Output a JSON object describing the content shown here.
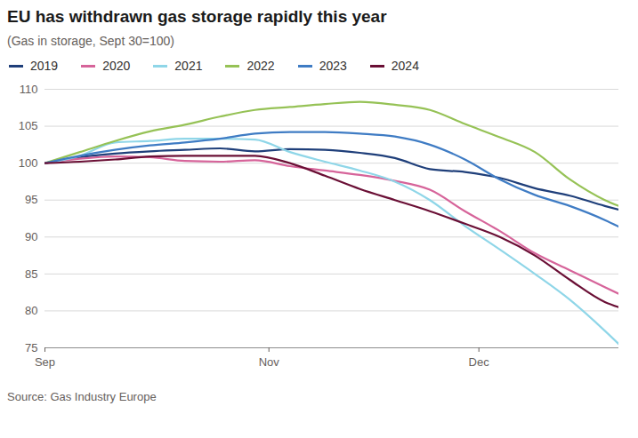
{
  "chart_data": {
    "type": "line",
    "title": "EU has withdrawn gas storage rapidly this year",
    "subtitle": "(Gas in storage, Sept 30=100)",
    "source": "Source: Gas Industry Europe",
    "x": [
      0,
      5,
      10,
      15,
      20,
      25,
      30,
      35,
      40,
      45,
      50,
      55,
      60,
      65,
      70,
      75,
      80,
      82
    ],
    "xlim": [
      0,
      82
    ],
    "xticks": [
      {
        "value": 0,
        "label": "Sep"
      },
      {
        "value": 32,
        "label": "Nov"
      },
      {
        "value": 62,
        "label": "Dec"
      }
    ],
    "ylim": [
      75,
      110
    ],
    "yticks": [
      75,
      80,
      85,
      90,
      95,
      100,
      105,
      110
    ],
    "grid": true,
    "legend": "top",
    "series": [
      {
        "name": "2019",
        "color": "#1f3f7a",
        "values": [
          100,
          100.8,
          101.3,
          101.6,
          101.8,
          102,
          101.6,
          101.9,
          101.8,
          101.4,
          100.7,
          99.2,
          98.8,
          98,
          96.6,
          95.6,
          94.2,
          93.7
        ]
      },
      {
        "name": "2020",
        "color": "#d6649a",
        "values": [
          100,
          100.6,
          100.9,
          100.8,
          100.3,
          100.2,
          100.4,
          99.6,
          99,
          98.4,
          97.6,
          96.4,
          93.5,
          90.8,
          87.8,
          85.5,
          83.2,
          82.3
        ]
      },
      {
        "name": "2021",
        "color": "#8fd6e8",
        "values": [
          100,
          101,
          102.8,
          103,
          103.3,
          103.3,
          103.2,
          101.5,
          100.2,
          99,
          97.5,
          95,
          91.5,
          88.3,
          85,
          81.5,
          77.3,
          75.5
        ]
      },
      {
        "name": "2022",
        "color": "#96c256",
        "values": [
          100,
          101.5,
          103,
          104.3,
          105.2,
          106.3,
          107.2,
          107.6,
          108,
          108.3,
          107.9,
          107.2,
          105.3,
          103.5,
          101.5,
          97.8,
          95,
          94.2
        ]
      },
      {
        "name": "2023",
        "color": "#3f7cc4",
        "values": [
          100,
          101,
          101.8,
          102.4,
          102.8,
          103.3,
          104,
          104.2,
          104.2,
          104,
          103.6,
          102.5,
          100.5,
          97.8,
          95.7,
          94.2,
          92.3,
          91.4
        ]
      },
      {
        "name": "2024",
        "color": "#6a0f35",
        "values": [
          100,
          100.2,
          100.5,
          100.9,
          101,
          101,
          101,
          100,
          98.3,
          96.5,
          95,
          93.5,
          91.8,
          90,
          87.5,
          84.2,
          81.2,
          80.5
        ]
      }
    ]
  }
}
